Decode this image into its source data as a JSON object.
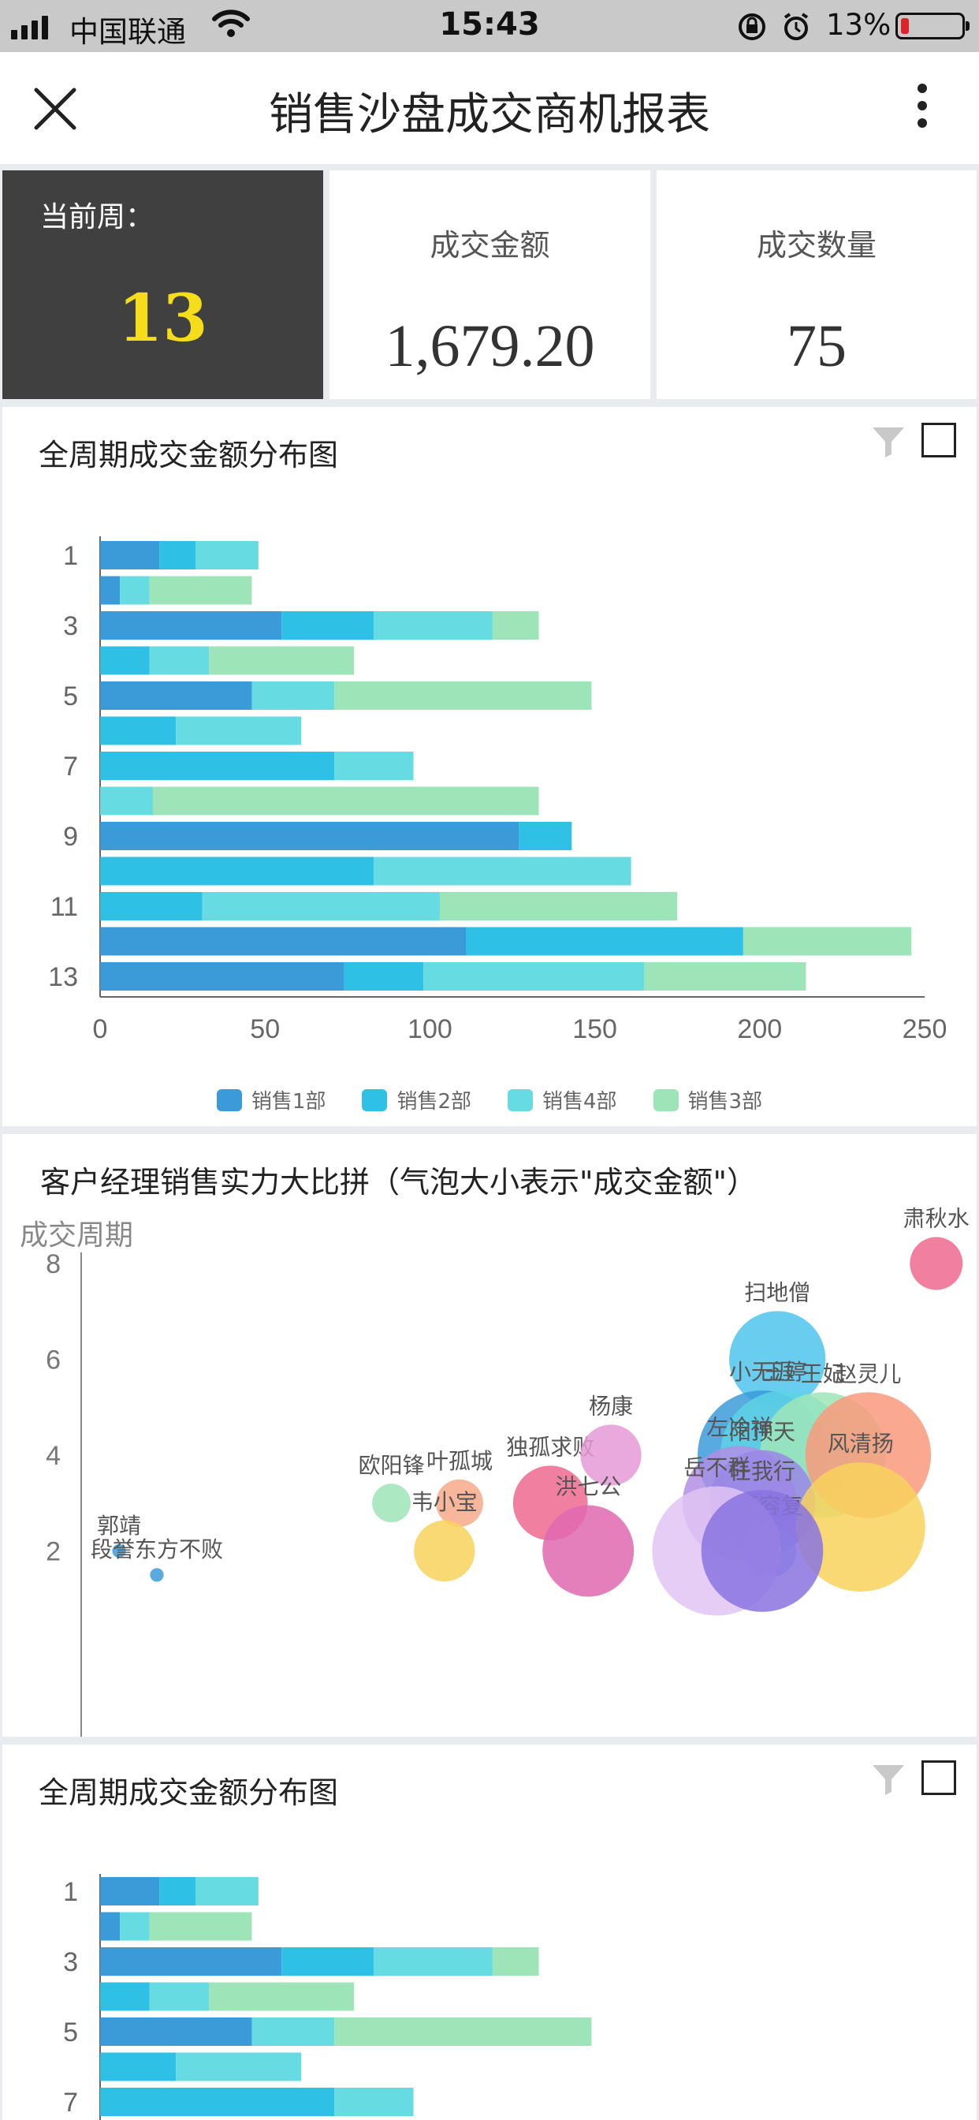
{
  "status_bar": {
    "carrier": "中国联通",
    "time": "15:43",
    "battery_percent": "13%",
    "battery_color": "#e0232a"
  },
  "header": {
    "title": "销售沙盘成交商机报表",
    "close_icon": "close-icon",
    "more_icon": "more-vertical-icon"
  },
  "kpis": {
    "week": {
      "label": "当前周：",
      "value": "13"
    },
    "amount": {
      "label": "成交金额",
      "value": "1,679.20"
    },
    "count": {
      "label": "成交数量",
      "value": "75"
    }
  },
  "colors": {
    "dept1": "#3b9bd9",
    "dept2": "#2fc0e6",
    "dept4": "#66dbe2",
    "dept3": "#9de5b8",
    "kpi_week_bg": "#404040",
    "kpi_week_value": "#f6dd1c"
  },
  "panels": {
    "bar1_title": "全周期成交金额分布图",
    "bubble_title": "客户经理销售实力大比拼（气泡大小表示\"成交金额\"）",
    "bar2_title": "全周期成交金额分布图"
  },
  "chart_data": [
    {
      "type": "bar",
      "orientation": "horizontal",
      "stacked": true,
      "title": "全周期成交金额分布图",
      "categories": [
        "1",
        "2",
        "3",
        "4",
        "5",
        "6",
        "7",
        "8",
        "9",
        "10",
        "11",
        "12",
        "13"
      ],
      "tick_labels_y": [
        "1",
        "3",
        "5",
        "7",
        "9",
        "11",
        "13"
      ],
      "xlim": [
        0,
        250
      ],
      "x_ticks": [
        "0",
        "50",
        "100",
        "150",
        "200",
        "250"
      ],
      "series": [
        {
          "name": "销售1部",
          "color": "#3b9bd9",
          "values": [
            18,
            6,
            55,
            0,
            46,
            0,
            0,
            0,
            127,
            0,
            0,
            111,
            74
          ]
        },
        {
          "name": "销售2部",
          "color": "#2fc0e6",
          "values": [
            11,
            0,
            28,
            15,
            0,
            23,
            71,
            0,
            16,
            83,
            31,
            84,
            24
          ]
        },
        {
          "name": "销售4部",
          "color": "#66dbe2",
          "values": [
            19,
            9,
            36,
            18,
            25,
            38,
            24,
            16,
            0,
            78,
            72,
            0,
            67
          ]
        },
        {
          "name": "销售3部",
          "color": "#9de5b8",
          "values": [
            0,
            31,
            14,
            44,
            78,
            0,
            0,
            117,
            0,
            0,
            72,
            51,
            49
          ]
        }
      ],
      "legend_position": "bottom",
      "grid": false
    },
    {
      "type": "scatter",
      "bubble": true,
      "title": "客户经理销售实力大比拼（气泡大小表示\"成交金额\"）",
      "ylabel": "成交周期",
      "y_ticks": [
        "2",
        "4",
        "6",
        "8"
      ],
      "points": [
        {
          "name": "郭靖",
          "x": 0.5,
          "y": 2,
          "size": 1,
          "color": "#3b9bd9"
        },
        {
          "name": "段誉东方不败",
          "x": 1.0,
          "y": 1.5,
          "size": 1,
          "color": "#3b9bd9"
        },
        {
          "name": "欧阳锋",
          "x": 4.1,
          "y": 3,
          "size": 8,
          "color": "#9de5b8"
        },
        {
          "name": "叶孤城",
          "x": 5.0,
          "y": 3,
          "size": 12,
          "color": "#f7a98a"
        },
        {
          "name": "韦小宝",
          "x": 4.8,
          "y": 2,
          "size": 20,
          "color": "#f8d25c"
        },
        {
          "name": "独孤求败",
          "x": 6.2,
          "y": 3,
          "size": 30,
          "color": "#ef6a8f"
        },
        {
          "name": "杨康",
          "x": 7.0,
          "y": 4,
          "size": 20,
          "color": "#e69ad6"
        },
        {
          "name": "洪七公",
          "x": 6.7,
          "y": 2,
          "size": 45,
          "color": "#e169b0"
        },
        {
          "name": "扫地僧",
          "x": 9.2,
          "y": 6,
          "size": 50,
          "color": "#4fc4ec"
        },
        {
          "name": "肃秋水",
          "x": 11.3,
          "y": 8,
          "size": 15,
          "color": "#ef6a8f"
        },
        {
          "name": "小无涯",
          "x": 9.0,
          "y": 4,
          "size": 90,
          "color": "#3b9bd9"
        },
        {
          "name": "王婷",
          "x": 9.3,
          "y": 4,
          "size": 90,
          "color": "#5dd3e6"
        },
        {
          "name": "王妃",
          "x": 9.8,
          "y": 4,
          "size": 85,
          "color": "#9de5b8"
        },
        {
          "name": "赵灵儿",
          "x": 10.4,
          "y": 4,
          "size": 85,
          "color": "#f99a7c"
        },
        {
          "name": "左冷禅",
          "x": 8.7,
          "y": 3,
          "size": 70,
          "color": "#b28ee6"
        },
        {
          "name": "阳顶天",
          "x": 9.0,
          "y": 3,
          "size": 60,
          "color": "#9a87e6"
        },
        {
          "name": "风清扬",
          "x": 10.3,
          "y": 2.5,
          "size": 90,
          "color": "#f8d25c"
        },
        {
          "name": "慕容复",
          "x": 9.1,
          "y": 2,
          "size": 15,
          "color": "#8fb4f0"
        },
        {
          "name": "岳不群",
          "x": 8.4,
          "y": 2,
          "size": 90,
          "color": "#e0c4f3"
        },
        {
          "name": "任我行",
          "x": 9.0,
          "y": 2,
          "size": 80,
          "color": "#8a73e0"
        }
      ]
    },
    {
      "type": "bar",
      "orientation": "horizontal",
      "stacked": true,
      "title": "全周期成交金额分布图",
      "categories": [
        "1",
        "2",
        "3",
        "4",
        "5",
        "6",
        "7"
      ],
      "tick_labels_y": [
        "1",
        "3",
        "5",
        "7"
      ],
      "xlim": [
        0,
        250
      ],
      "series": [
        {
          "name": "销售1部",
          "color": "#3b9bd9",
          "values": [
            18,
            6,
            55,
            0,
            46,
            0,
            0
          ]
        },
        {
          "name": "销售2部",
          "color": "#2fc0e6",
          "values": [
            11,
            0,
            28,
            15,
            0,
            23,
            71
          ]
        },
        {
          "name": "销售4部",
          "color": "#66dbe2",
          "values": [
            19,
            9,
            36,
            18,
            25,
            38,
            24
          ]
        },
        {
          "name": "销售3部",
          "color": "#9de5b8",
          "values": [
            0,
            31,
            14,
            44,
            78,
            0,
            0
          ]
        }
      ]
    }
  ]
}
